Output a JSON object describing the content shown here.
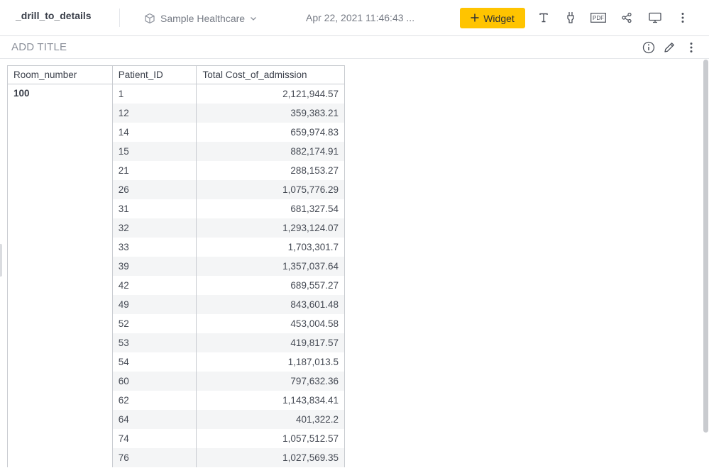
{
  "header": {
    "dashboard_name": "_drill_to_details",
    "datasource": "Sample Healthcare",
    "timestamp": "Apr 22, 2021 11:46:43 ...",
    "widget_button": "Widget",
    "pdf_label": "PDF"
  },
  "subbar": {
    "add_title": "ADD TITLE"
  },
  "table": {
    "columns": [
      "Room_number",
      "Patient_ID",
      "Total Cost_of_admission"
    ],
    "group": "100",
    "rows": [
      {
        "patient_id": "1",
        "cost": "2,121,944.57"
      },
      {
        "patient_id": "12",
        "cost": "359,383.21"
      },
      {
        "patient_id": "14",
        "cost": "659,974.83"
      },
      {
        "patient_id": "15",
        "cost": "882,174.91"
      },
      {
        "patient_id": "21",
        "cost": "288,153.27"
      },
      {
        "patient_id": "26",
        "cost": "1,075,776.29"
      },
      {
        "patient_id": "31",
        "cost": "681,327.54"
      },
      {
        "patient_id": "32",
        "cost": "1,293,124.07"
      },
      {
        "patient_id": "33",
        "cost": "1,703,301.7"
      },
      {
        "patient_id": "39",
        "cost": "1,357,037.64"
      },
      {
        "patient_id": "42",
        "cost": "689,557.27"
      },
      {
        "patient_id": "49",
        "cost": "843,601.48"
      },
      {
        "patient_id": "52",
        "cost": "453,004.58"
      },
      {
        "patient_id": "53",
        "cost": "419,817.57"
      },
      {
        "patient_id": "54",
        "cost": "1,187,013.5"
      },
      {
        "patient_id": "60",
        "cost": "797,632.36"
      },
      {
        "patient_id": "62",
        "cost": "1,143,834.41"
      },
      {
        "patient_id": "64",
        "cost": "401,322.2"
      },
      {
        "patient_id": "74",
        "cost": "1,057,512.57"
      },
      {
        "patient_id": "76",
        "cost": "1,027,569.35"
      }
    ]
  },
  "colors": {
    "accent": "#ffc400",
    "stripe": "#f4f5f6",
    "border": "#c9ccd1"
  }
}
